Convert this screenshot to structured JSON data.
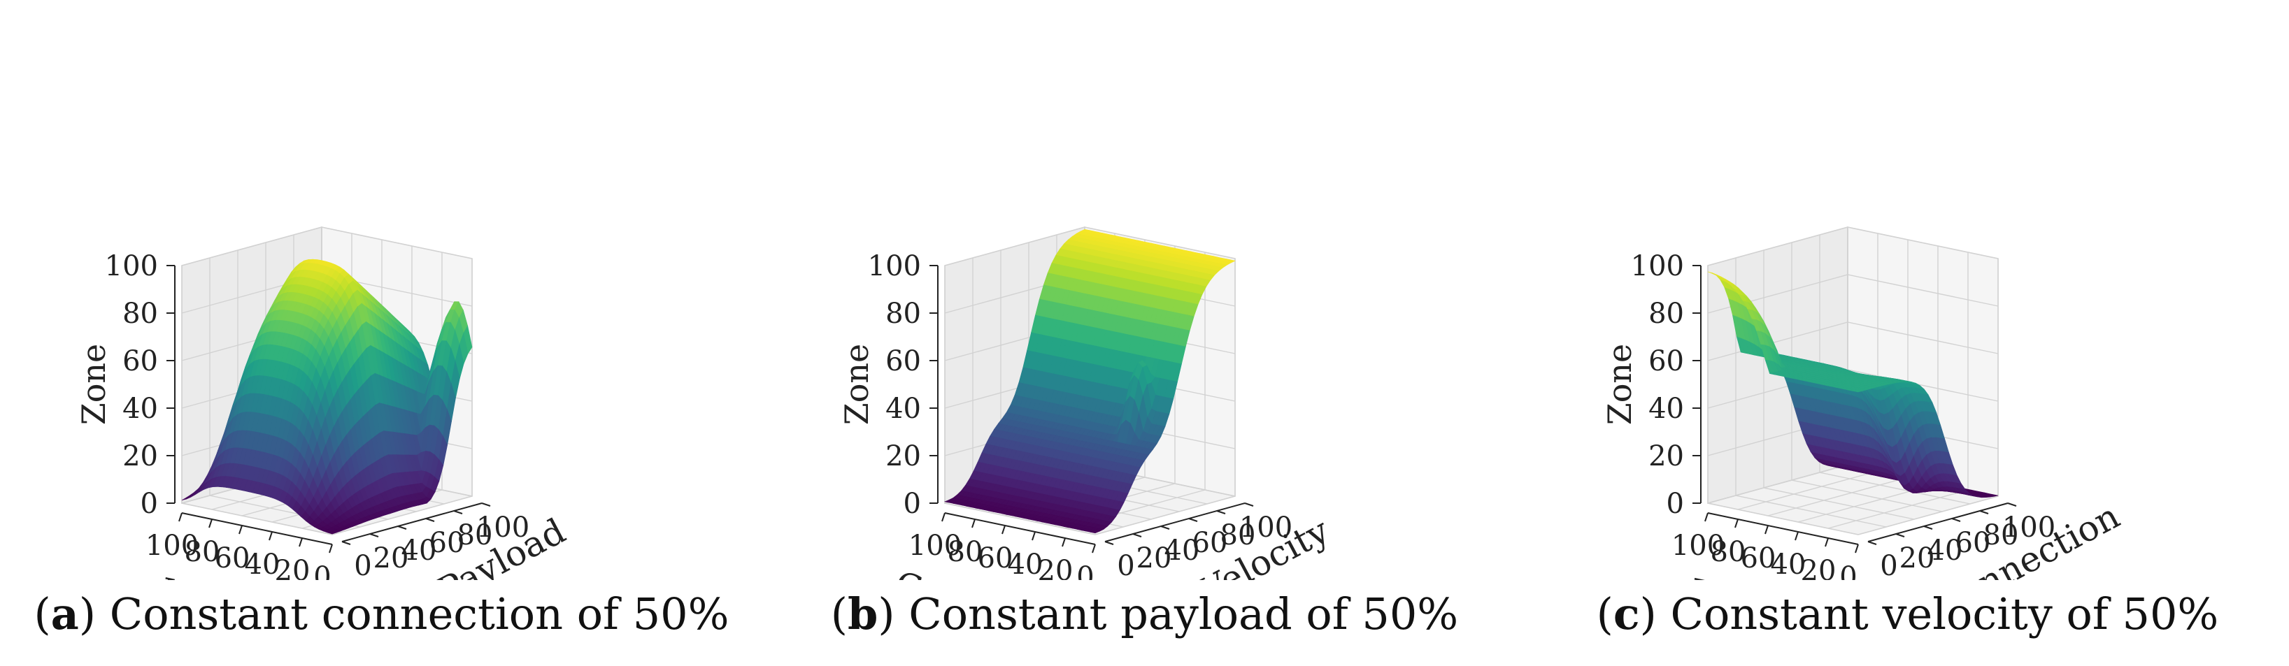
{
  "chart_data": [
    {
      "type": "surface3d",
      "panel": "a",
      "caption": "Constant connection of 50%",
      "zlabel": "Zone",
      "xlabel": "Velocity",
      "ylabel": "Payload",
      "x_ticks": [
        "100",
        "80",
        "60",
        "40",
        "20",
        "0"
      ],
      "y_ticks": [
        "0",
        "20",
        "40",
        "60",
        "80",
        "100"
      ],
      "z_ticks": [
        "0",
        "20",
        "40",
        "60",
        "80",
        "100"
      ],
      "xlim": [
        0,
        100
      ],
      "ylim": [
        0,
        100
      ],
      "zlim": [
        0,
        100
      ],
      "colormap": "viridis",
      "grid": true,
      "surface_shape": "zone high (about 100) at middle velocities and payloads, dropping to about 0 at low velocity; secondary rise toward 60-85 at the high-payload corners"
    },
    {
      "type": "surface3d",
      "panel": "b",
      "caption": "Constant payload of 50%",
      "zlabel": "Zone",
      "xlabel": "Connection",
      "ylabel": "Velocity",
      "x_ticks": [
        "100",
        "80",
        "60",
        "40",
        "20",
        "0"
      ],
      "y_ticks": [
        "0",
        "20",
        "40",
        "60",
        "80",
        "100"
      ],
      "z_ticks": [
        "0",
        "20",
        "40",
        "60",
        "80",
        "100"
      ],
      "xlim": [
        0,
        100
      ],
      "ylim": [
        0,
        100
      ],
      "zlim": [
        0,
        100
      ],
      "colormap": "viridis",
      "grid": true,
      "surface_shape": "zone near 0 at low velocity, stepping up across velocity to about 100 at high velocity; a local bump near low connection"
    },
    {
      "type": "surface3d",
      "panel": "c",
      "caption": "Constant velocity of 50%",
      "zlabel": "Zone",
      "xlabel": "Payload",
      "ylabel": "Connection",
      "x_ticks": [
        "100",
        "80",
        "60",
        "40",
        "20",
        "0"
      ],
      "y_ticks": [
        "0",
        "20",
        "40",
        "60",
        "80",
        "100"
      ],
      "z_ticks": [
        "0",
        "20",
        "40",
        "60",
        "80",
        "100"
      ],
      "xlim": [
        0,
        100
      ],
      "ylim": [
        0,
        100
      ],
      "zlim": [
        0,
        100
      ],
      "colormap": "viridis",
      "grid": true,
      "surface_shape": "zone about 100 at high payload and low connection, decreasing through a plateau around 60 to near 0 at high connection"
    }
  ]
}
